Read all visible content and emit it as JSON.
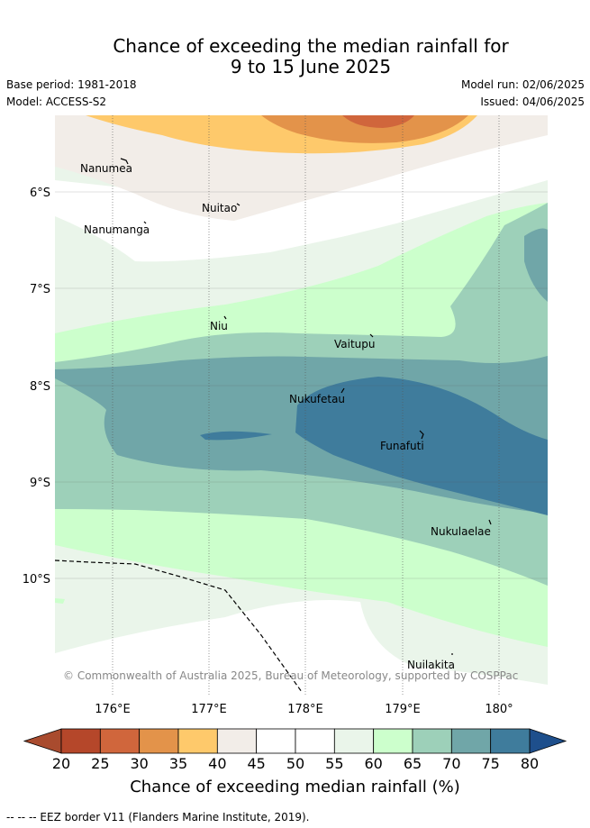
{
  "header": {
    "title_line1": "Chance of exceeding the median rainfall for",
    "title_line2": "9 to 15 June 2025",
    "base_period": "Base period: 1981-2018",
    "model": "Model: ACCESS-S2",
    "model_run": "Model run: 02/06/2025",
    "issued": "Issued: 04/06/2025"
  },
  "map": {
    "lat_labels": [
      "6°S",
      "7°S",
      "8°S",
      "9°S",
      "10°S"
    ],
    "lon_labels": [
      "176°E",
      "177°E",
      "178°E",
      "179°E",
      "180°"
    ],
    "islands": [
      "Nanumea",
      "Nuitao",
      "Nanumanga",
      "Niu",
      "Vaitupu",
      "Nukufetau",
      "Funafuti",
      "Nukulaelae",
      "Nuilakita"
    ],
    "copyright": "© Commonwealth of Australia 2025, Bureau of Meteorology, supported by COSPPac"
  },
  "colorbar": {
    "ticks": [
      "20",
      "25",
      "30",
      "35",
      "40",
      "45",
      "50",
      "55",
      "60",
      "65",
      "70",
      "75",
      "80"
    ],
    "colors": [
      "#b5472a",
      "#d0663c",
      "#e3934a",
      "#fec96b",
      "#f2ede8",
      "#ffffff",
      "#ffffff",
      "#eaf5ea",
      "#ccffcc",
      "#9dd0b9",
      "#70a6a8",
      "#3f7c9c"
    ],
    "under_color": "#a94b2e",
    "over_color": "#1e4f8c",
    "label": "Chance of exceeding median rainfall (%)"
  },
  "footer": {
    "legend": "-- -- -- EEZ border V11 (Flanders Marine Institute, 2019)."
  }
}
